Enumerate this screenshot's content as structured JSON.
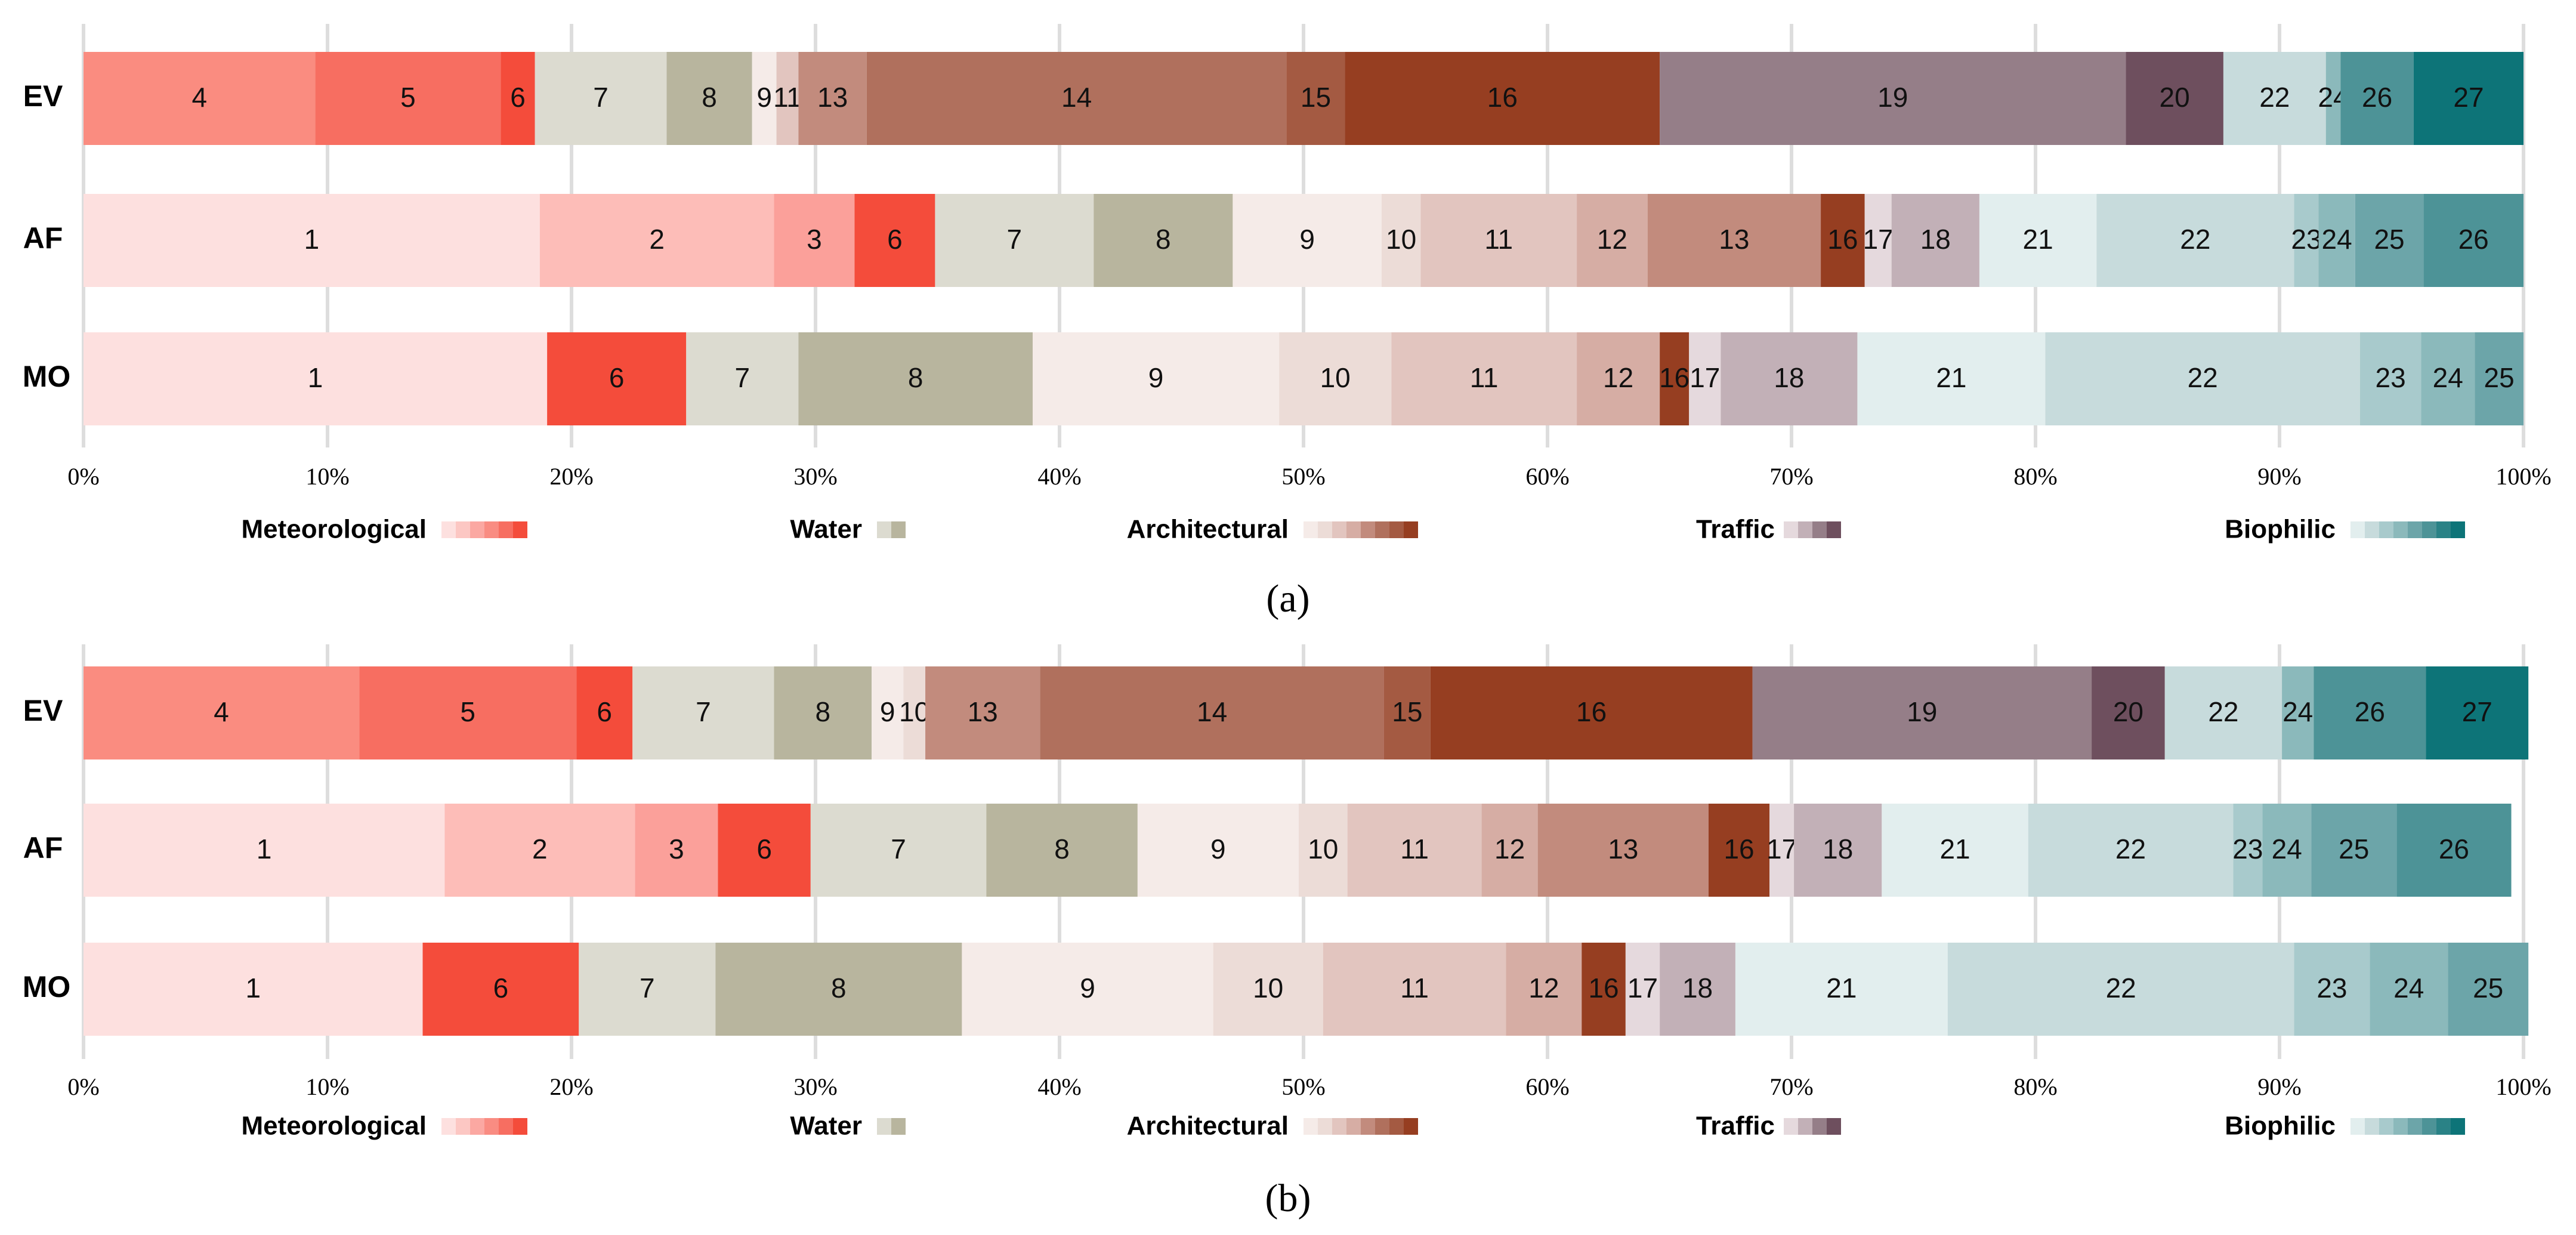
{
  "chart_data": [
    {
      "type": "bar",
      "orientation": "horizontal",
      "stacked": true,
      "panel_label": "(a)",
      "title": "",
      "xlabel": "",
      "ylabel": "",
      "xlim": [
        0,
        100
      ],
      "x_ticks": [
        "0%",
        "10%",
        "20%",
        "30%",
        "40%",
        "50%",
        "60%",
        "70%",
        "80%",
        "90%",
        "100%"
      ],
      "grid": true,
      "rows": [
        {
          "label": "EV",
          "segments": [
            {
              "id": "4",
              "value": 9.5
            },
            {
              "id": "5",
              "value": 7.6
            },
            {
              "id": "6",
              "value": 1.4
            },
            {
              "id": "7",
              "value": 5.4
            },
            {
              "id": "8",
              "value": 3.5
            },
            {
              "id": "9",
              "value": 1.0
            },
            {
              "id": "11",
              "value": 0.9
            },
            {
              "id": "13",
              "value": 2.8
            },
            {
              "id": "14",
              "value": 17.2
            },
            {
              "id": "15",
              "value": 2.4
            },
            {
              "id": "16",
              "value": 12.9
            },
            {
              "id": "19",
              "value": 19.1
            },
            {
              "id": "20",
              "value": 4.0
            },
            {
              "id": "22",
              "value": 4.2
            },
            {
              "id": "24",
              "value": 0.6
            },
            {
              "id": "26",
              "value": 3.0
            },
            {
              "id": "27",
              "value": 4.5
            }
          ]
        },
        {
          "label": "AF",
          "segments": [
            {
              "id": "1",
              "value": 18.7
            },
            {
              "id": "2",
              "value": 9.6
            },
            {
              "id": "3",
              "value": 3.3
            },
            {
              "id": "6",
              "value": 3.3
            },
            {
              "id": "7",
              "value": 6.5
            },
            {
              "id": "8",
              "value": 5.7
            },
            {
              "id": "9",
              "value": 6.1
            },
            {
              "id": "10",
              "value": 1.6
            },
            {
              "id": "11",
              "value": 6.4
            },
            {
              "id": "12",
              "value": 2.9
            },
            {
              "id": "13",
              "value": 7.1
            },
            {
              "id": "16",
              "value": 1.8
            },
            {
              "id": "17",
              "value": 1.1
            },
            {
              "id": "18",
              "value": 3.6
            },
            {
              "id": "21",
              "value": 4.8
            },
            {
              "id": "22",
              "value": 8.1
            },
            {
              "id": "23",
              "value": 1.0
            },
            {
              "id": "24",
              "value": 1.5
            },
            {
              "id": "25",
              "value": 2.8
            },
            {
              "id": "26",
              "value": 4.1
            }
          ]
        },
        {
          "label": "MO",
          "segments": [
            {
              "id": "1",
              "value": 19.0
            },
            {
              "id": "6",
              "value": 5.7
            },
            {
              "id": "7",
              "value": 4.6
            },
            {
              "id": "8",
              "value": 9.6
            },
            {
              "id": "9",
              "value": 10.1
            },
            {
              "id": "10",
              "value": 4.6
            },
            {
              "id": "11",
              "value": 7.6
            },
            {
              "id": "12",
              "value": 3.4
            },
            {
              "id": "16",
              "value": 1.2
            },
            {
              "id": "17",
              "value": 1.3
            },
            {
              "id": "18",
              "value": 5.6
            },
            {
              "id": "21",
              "value": 7.7
            },
            {
              "id": "22",
              "value": 12.9
            },
            {
              "id": "23",
              "value": 2.5
            },
            {
              "id": "24",
              "value": 2.2
            },
            {
              "id": "25",
              "value": 2.0
            }
          ]
        }
      ]
    },
    {
      "type": "bar",
      "orientation": "horizontal",
      "stacked": true,
      "panel_label": "(b)",
      "title": "",
      "xlabel": "",
      "ylabel": "",
      "xlim": [
        0,
        100
      ],
      "x_ticks": [
        "0%",
        "10%",
        "20%",
        "30%",
        "40%",
        "50%",
        "60%",
        "70%",
        "80%",
        "90%",
        "100%"
      ],
      "grid": true,
      "rows": [
        {
          "label": "EV",
          "segments": [
            {
              "id": "4",
              "value": 11.3
            },
            {
              "id": "5",
              "value": 8.9
            },
            {
              "id": "6",
              "value": 2.3
            },
            {
              "id": "7",
              "value": 5.8
            },
            {
              "id": "8",
              "value": 4.0
            },
            {
              "id": "9",
              "value": 1.3
            },
            {
              "id": "10",
              "value": 0.9
            },
            {
              "id": "13",
              "value": 4.7
            },
            {
              "id": "14",
              "value": 14.1
            },
            {
              "id": "15",
              "value": 1.9
            },
            {
              "id": "16",
              "value": 13.2
            },
            {
              "id": "19",
              "value": 13.9
            },
            {
              "id": "20",
              "value": 3.0
            },
            {
              "id": "22",
              "value": 4.8
            },
            {
              "id": "24",
              "value": 1.3
            },
            {
              "id": "26",
              "value": 4.6
            },
            {
              "id": "27",
              "value": 4.2
            }
          ]
        },
        {
          "label": "AF",
          "segments": [
            {
              "id": "1",
              "value": 14.8
            },
            {
              "id": "2",
              "value": 7.8
            },
            {
              "id": "3",
              "value": 3.4
            },
            {
              "id": "6",
              "value": 3.8
            },
            {
              "id": "7",
              "value": 7.2
            },
            {
              "id": "8",
              "value": 6.2
            },
            {
              "id": "9",
              "value": 6.6
            },
            {
              "id": "10",
              "value": 2.0
            },
            {
              "id": "11",
              "value": 5.5
            },
            {
              "id": "12",
              "value": 2.3
            },
            {
              "id": "13",
              "value": 7.0
            },
            {
              "id": "16",
              "value": 2.5
            },
            {
              "id": "17",
              "value": 1.0
            },
            {
              "id": "18",
              "value": 3.6
            },
            {
              "id": "21",
              "value": 6.0
            },
            {
              "id": "22",
              "value": 8.4
            },
            {
              "id": "23",
              "value": 1.2
            },
            {
              "id": "24",
              "value": 2.0
            },
            {
              "id": "25",
              "value": 3.5
            },
            {
              "id": "26",
              "value": 4.7
            }
          ]
        },
        {
          "label": "MO",
          "segments": [
            {
              "id": "1",
              "value": 13.9
            },
            {
              "id": "6",
              "value": 6.4
            },
            {
              "id": "7",
              "value": 5.6
            },
            {
              "id": "8",
              "value": 10.1
            },
            {
              "id": "9",
              "value": 10.3
            },
            {
              "id": "10",
              "value": 4.5
            },
            {
              "id": "11",
              "value": 7.5
            },
            {
              "id": "12",
              "value": 3.1
            },
            {
              "id": "16",
              "value": 1.8
            },
            {
              "id": "17",
              "value": 1.4
            },
            {
              "id": "18",
              "value": 3.1
            },
            {
              "id": "21",
              "value": 8.7
            },
            {
              "id": "22",
              "value": 14.2
            },
            {
              "id": "23",
              "value": 3.1
            },
            {
              "id": "24",
              "value": 3.2
            },
            {
              "id": "25",
              "value": 3.3
            }
          ]
        }
      ]
    }
  ],
  "legend": [
    {
      "name": "Meteorological",
      "swatches": [
        "#fde0df",
        "#fcc7c3",
        "#fba8a2",
        "#f98c82",
        "#f76e61",
        "#f44c3b"
      ]
    },
    {
      "name": "Water",
      "swatches": [
        "#dcdbd0",
        "#b8b59e"
      ]
    },
    {
      "name": "Architectural",
      "swatches": [
        "#f5ebe8",
        "#ecdcd7",
        "#e2c5bf",
        "#d6ada4",
        "#c28b7d",
        "#b0705d",
        "#a45a42",
        "#963e21"
      ]
    },
    {
      "name": "Traffic",
      "swatches": [
        "#e5d9dd",
        "#c2b0b7",
        "#957e88",
        "#6e4f5e"
      ]
    },
    {
      "name": "Biophilic",
      "swatches": [
        "#e2eeee",
        "#c7dbdc",
        "#a8cacc",
        "#8bb9bb",
        "#6ca5a9",
        "#4d9397",
        "#2a8286",
        "#0d7478"
      ]
    }
  ],
  "segment_colors": {
    "1": "#fde0df",
    "2": "#fdbdb8",
    "3": "#fba09a",
    "4": "#fa8c80",
    "5": "#f76e61",
    "6": "#f44c3b",
    "7": "#dcdbd0",
    "8": "#b8b59e",
    "9": "#f5ebe8",
    "10": "#ecdcd7",
    "11": "#e2c5bf",
    "12": "#d6ada4",
    "13": "#c28b7d",
    "14": "#b0705d",
    "15": "#a45a42",
    "16": "#963e21",
    "17": "#e5d9dd",
    "18": "#c2b0b7",
    "19": "#957e88",
    "20": "#6e4f5e",
    "21": "#e2eeee",
    "22": "#c7dbdc",
    "23": "#a8cacc",
    "24": "#8bb9bb",
    "25": "#6ca5a9",
    "26": "#4d9397",
    "27": "#0d7478"
  }
}
